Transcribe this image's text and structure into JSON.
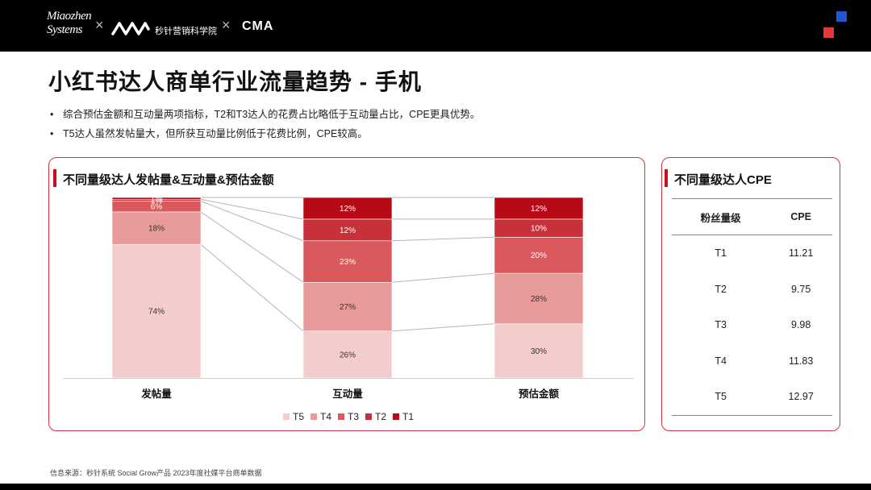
{
  "header": {
    "logo_miaozhen_line1": "Miaozhen",
    "logo_miaozhen_line2": "Systems",
    "separator": "×",
    "institute_name": "秒针营销科学院",
    "logo_cma": "CMA"
  },
  "colors": {
    "T5": "#f4cccc",
    "T4": "#e89a9a",
    "T3": "#d9595c",
    "T2": "#c8303a",
    "T1": "#b80a16",
    "accent": "#d9343a"
  },
  "page": {
    "title": "小红书达人商单行业流量趋势 - 手机",
    "bullets": [
      "综合预估金额和互动量两项指标，T2和T3达人的花费占比略低于互动量占比，CPE更具优势。",
      "T5达人虽然发帖量大，但所获互动量比例低于花费比例，CPE较高。"
    ]
  },
  "left_panel": {
    "title": "不同量级达人发帖量&互动量&预估金额"
  },
  "right_panel": {
    "title": "不同量级达人CPE",
    "table": {
      "headers": [
        "粉丝量级",
        "CPE"
      ],
      "rows": [
        [
          "T1",
          "11.21"
        ],
        [
          "T2",
          "9.75"
        ],
        [
          "T3",
          "9.98"
        ],
        [
          "T4",
          "11.83"
        ],
        [
          "T5",
          "12.97"
        ]
      ]
    }
  },
  "chart_data": {
    "type": "bar",
    "stacked": true,
    "percent": true,
    "categories": [
      "发帖量",
      "互动量",
      "预估金额"
    ],
    "series": [
      {
        "name": "T5",
        "values": [
          74,
          26,
          30
        ]
      },
      {
        "name": "T4",
        "values": [
          18,
          27,
          28
        ]
      },
      {
        "name": "T3",
        "values": [
          6,
          23,
          20
        ]
      },
      {
        "name": "T2",
        "values": [
          1,
          12,
          10
        ]
      },
      {
        "name": "T1",
        "values": [
          1,
          12,
          12
        ]
      }
    ],
    "data_labels": [
      [
        "74%",
        "26%",
        "30%"
      ],
      [
        "18%",
        "27%",
        "28%"
      ],
      [
        "6%",
        "23%",
        "20%"
      ],
      [
        "1%",
        "12%",
        "10%"
      ],
      [
        "1%",
        "12%",
        "12%"
      ]
    ],
    "legend_position": "bottom",
    "ylim": [
      0,
      100
    ],
    "grid": false
  },
  "footer": {
    "source": "信息来源：秒针系统  Social Grow产品  2023年度社媒平台商单数据"
  }
}
